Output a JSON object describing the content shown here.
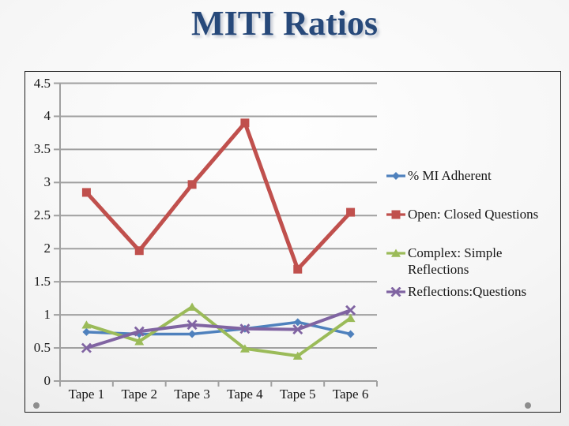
{
  "slide": {
    "title": "MITI Ratios"
  },
  "chart_data": {
    "type": "line",
    "title": "MITI Ratios",
    "categories": [
      "Tape 1",
      "Tape 2",
      "Tape 3",
      "Tape 4",
      "Tape 5",
      "Tape 6"
    ],
    "series": [
      {
        "name": "% MI Adherent",
        "color": "#4f81bd",
        "marker": "diamond",
        "line_width": 3.5,
        "values": [
          0.74,
          0.71,
          0.71,
          0.79,
          0.89,
          0.71
        ]
      },
      {
        "name": "Open: Closed Questions",
        "color": "#c0504d",
        "marker": "square",
        "line_width": 5,
        "values": [
          2.85,
          1.97,
          2.97,
          3.9,
          1.69,
          2.55
        ]
      },
      {
        "name": "Complex: Simple Reflections",
        "color": "#9bbb59",
        "marker": "triangle",
        "line_width": 4,
        "values": [
          0.85,
          0.6,
          1.12,
          0.49,
          0.38,
          0.95
        ]
      },
      {
        "name": "Reflections:Questions",
        "color": "#8064a2",
        "marker": "x",
        "line_width": 4,
        "values": [
          0.5,
          0.75,
          0.85,
          0.79,
          0.78,
          1.07
        ]
      }
    ],
    "y_axis": {
      "min": 0,
      "max": 4.5,
      "step": 0.5,
      "ticks": [
        {
          "label": "4.5",
          "value": 4.5
        },
        {
          "label": "4",
          "value": 4
        },
        {
          "label": "3.5",
          "value": 3.5
        },
        {
          "label": "3",
          "value": 3
        },
        {
          "label": "2.5",
          "value": 2.5
        },
        {
          "label": "2",
          "value": 2
        },
        {
          "label": "1.5",
          "value": 1.5
        },
        {
          "label": "1",
          "value": 1
        },
        {
          "label": "0.5",
          "value": 0.5
        },
        {
          "label": "0",
          "value": 0
        }
      ]
    },
    "grid": true,
    "grid_color": "#a0a0a0",
    "legend_position": "right"
  }
}
